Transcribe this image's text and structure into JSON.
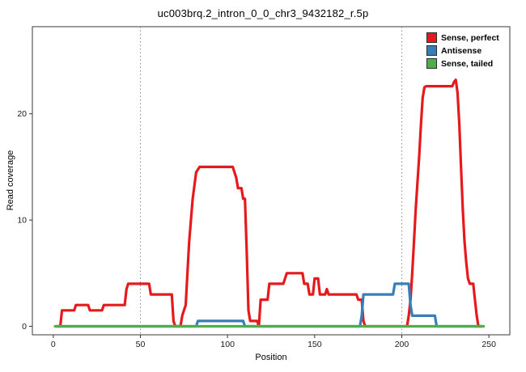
{
  "chart_data": {
    "type": "line",
    "title": "uc003brq.2_intron_0_0_chr3_9432182_r.5p",
    "xlabel": "Position",
    "ylabel": "Read coverage",
    "xlim": [
      -12,
      262
    ],
    "ylim": [
      -0.8,
      28.2
    ],
    "x_ticks": [
      0,
      50,
      100,
      150,
      200,
      250
    ],
    "y_ticks": [
      0,
      10,
      20
    ],
    "vlines": [
      50,
      200
    ],
    "grid": "dotted-vertical",
    "legend_position": "top-right",
    "panel_border_color": "#595959",
    "gridline_color": "#8c8c8c",
    "tick_color": "#333333",
    "series": [
      {
        "name": "Sense, perfect",
        "color": "#e41a1c",
        "points": [
          [
            2,
            0
          ],
          [
            4,
            0
          ],
          [
            5,
            1.5
          ],
          [
            12,
            1.5
          ],
          [
            13,
            2
          ],
          [
            20,
            2
          ],
          [
            21,
            1.5
          ],
          [
            28,
            1.5
          ],
          [
            29,
            2
          ],
          [
            41,
            2
          ],
          [
            42,
            3.5
          ],
          [
            43,
            4
          ],
          [
            55,
            4
          ],
          [
            56,
            3
          ],
          [
            68,
            3
          ],
          [
            69,
            0.5
          ],
          [
            70,
            0
          ],
          [
            73,
            0
          ],
          [
            74,
            1
          ],
          [
            75,
            1.5
          ],
          [
            76,
            2
          ],
          [
            77,
            5
          ],
          [
            78,
            8
          ],
          [
            80,
            12
          ],
          [
            82,
            14.5
          ],
          [
            84,
            15
          ],
          [
            103,
            15
          ],
          [
            105,
            14
          ],
          [
            106,
            13
          ],
          [
            108,
            13
          ],
          [
            109,
            12
          ],
          [
            110,
            12
          ],
          [
            111,
            7
          ],
          [
            112,
            1.5
          ],
          [
            113,
            0.5
          ],
          [
            117,
            0.5
          ],
          [
            118,
            0
          ],
          [
            119,
            2.5
          ],
          [
            123,
            2.5
          ],
          [
            124,
            4
          ],
          [
            132,
            4
          ],
          [
            134,
            5
          ],
          [
            143,
            5
          ],
          [
            144,
            4
          ],
          [
            146,
            4
          ],
          [
            147,
            3
          ],
          [
            149,
            3
          ],
          [
            150,
            4.5
          ],
          [
            152,
            4.5
          ],
          [
            153,
            3
          ],
          [
            156,
            3
          ],
          [
            157,
            3.5
          ],
          [
            158,
            3
          ],
          [
            174,
            3
          ],
          [
            175,
            2.5
          ],
          [
            177,
            2.5
          ],
          [
            178,
            0.5
          ],
          [
            179,
            0
          ],
          [
            203,
            0
          ],
          [
            204,
            1
          ],
          [
            205,
            2.5
          ],
          [
            206,
            5
          ],
          [
            207,
            8
          ],
          [
            208,
            11
          ],
          [
            210,
            16
          ],
          [
            211,
            19
          ],
          [
            212,
            21.5
          ],
          [
            213,
            22.5
          ],
          [
            214,
            22.6
          ],
          [
            229,
            22.6
          ],
          [
            230,
            23
          ],
          [
            231,
            23.2
          ],
          [
            232,
            22
          ],
          [
            233,
            19
          ],
          [
            234,
            15
          ],
          [
            235,
            11
          ],
          [
            236,
            8
          ],
          [
            237,
            6
          ],
          [
            238,
            4.5
          ],
          [
            239,
            4
          ],
          [
            241,
            4
          ],
          [
            242,
            2.5
          ],
          [
            243,
            1
          ],
          [
            244,
            0
          ],
          [
            246,
            0
          ]
        ]
      },
      {
        "name": "Antisense",
        "color": "#377eb8",
        "points": [
          [
            2,
            0
          ],
          [
            82,
            0
          ],
          [
            83,
            0.5
          ],
          [
            109,
            0.5
          ],
          [
            110,
            0
          ],
          [
            176,
            0
          ],
          [
            177,
            1
          ],
          [
            178,
            3
          ],
          [
            195,
            3
          ],
          [
            196,
            4
          ],
          [
            204,
            4
          ],
          [
            205,
            2
          ],
          [
            206,
            1
          ],
          [
            219,
            1
          ],
          [
            220,
            0
          ],
          [
            246,
            0
          ]
        ]
      },
      {
        "name": "Sense, tailed",
        "color": "#4daf4a",
        "points": [
          [
            1,
            0
          ],
          [
            247,
            0
          ]
        ]
      }
    ]
  }
}
